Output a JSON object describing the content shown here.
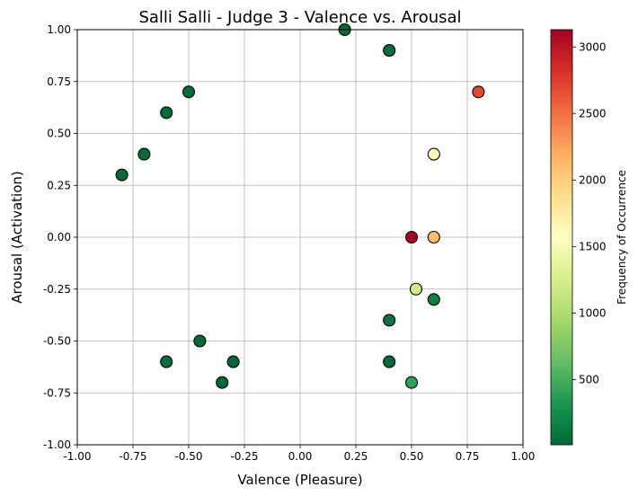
{
  "chart_data": {
    "type": "scatter",
    "title": "Salli Salli - Judge 3 - Valence vs. Arousal",
    "xlabel": "Valence (Pleasure)",
    "ylabel": "Arousal (Activation)",
    "xlim": [
      -1.0,
      1.0
    ],
    "ylim": [
      -1.0,
      1.0
    ],
    "x_ticks": [
      "-1.00",
      "-0.75",
      "-0.50",
      "-0.25",
      "0.00",
      "0.25",
      "0.50",
      "0.75",
      "1.00"
    ],
    "y_ticks": [
      "-1.00",
      "-0.75",
      "-0.50",
      "-0.25",
      "0.00",
      "0.25",
      "0.50",
      "0.75",
      "1.00"
    ],
    "grid": true,
    "colormap": "RdYlGn_r",
    "colorbar": {
      "label": "Frequency of Occurrence",
      "range": [
        10,
        3130
      ],
      "ticks": [
        "500",
        "1000",
        "1500",
        "2000",
        "2500",
        "3000"
      ]
    },
    "points": [
      {
        "x": 0.2,
        "y": 1.0,
        "freq": 20
      },
      {
        "x": 0.4,
        "y": 0.9,
        "freq": 40
      },
      {
        "x": 0.8,
        "y": 0.7,
        "freq": 2700
      },
      {
        "x": -0.5,
        "y": 0.7,
        "freq": 30
      },
      {
        "x": -0.6,
        "y": 0.6,
        "freq": 25
      },
      {
        "x": 0.6,
        "y": 0.4,
        "freq": 1600
      },
      {
        "x": -0.7,
        "y": 0.4,
        "freq": 30
      },
      {
        "x": -0.8,
        "y": 0.3,
        "freq": 25
      },
      {
        "x": 0.5,
        "y": 0.0,
        "freq": 3130
      },
      {
        "x": 0.6,
        "y": 0.0,
        "freq": 2100
      },
      {
        "x": 0.52,
        "y": -0.25,
        "freq": 1200
      },
      {
        "x": 0.6,
        "y": -0.3,
        "freq": 160
      },
      {
        "x": 0.4,
        "y": -0.4,
        "freq": 90
      },
      {
        "x": -0.45,
        "y": -0.5,
        "freq": 30
      },
      {
        "x": -0.6,
        "y": -0.6,
        "freq": 60
      },
      {
        "x": -0.3,
        "y": -0.6,
        "freq": 25
      },
      {
        "x": 0.4,
        "y": -0.6,
        "freq": 25
      },
      {
        "x": -0.35,
        "y": -0.7,
        "freq": 10
      },
      {
        "x": 0.5,
        "y": -0.7,
        "freq": 400
      }
    ]
  }
}
